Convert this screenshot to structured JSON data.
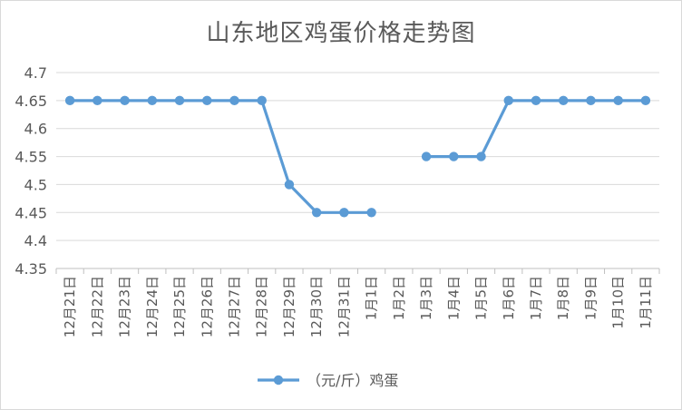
{
  "chart_data": {
    "type": "line",
    "title": "山东地区鸡蛋价格走势图",
    "categories": [
      "12月21日",
      "12月22日",
      "12月23日",
      "12月24日",
      "12月25日",
      "12月26日",
      "12月27日",
      "12月28日",
      "12月29日",
      "12月30日",
      "12月31日",
      "1月1日",
      "1月2日",
      "1月3日",
      "1月4日",
      "1月5日",
      "1月6日",
      "1月7日",
      "1月8日",
      "1月9日",
      "1月10日",
      "1月11日"
    ],
    "series": [
      {
        "name": "（元/斤）鸡蛋",
        "values": [
          4.65,
          4.65,
          4.65,
          4.65,
          4.65,
          4.65,
          4.65,
          4.65,
          4.5,
          4.45,
          4.45,
          4.45,
          null,
          4.55,
          4.55,
          4.55,
          4.65,
          4.65,
          4.65,
          4.65,
          4.65,
          4.65
        ],
        "color": "#5b9bd5"
      }
    ],
    "ylim": [
      4.35,
      4.7
    ],
    "yticks": [
      "4.35",
      "4.4",
      "4.45",
      "4.5",
      "4.55",
      "4.6",
      "4.65",
      "4.7"
    ],
    "grid": true,
    "legend_position": "bottom",
    "xlabel": "",
    "ylabel": ""
  }
}
